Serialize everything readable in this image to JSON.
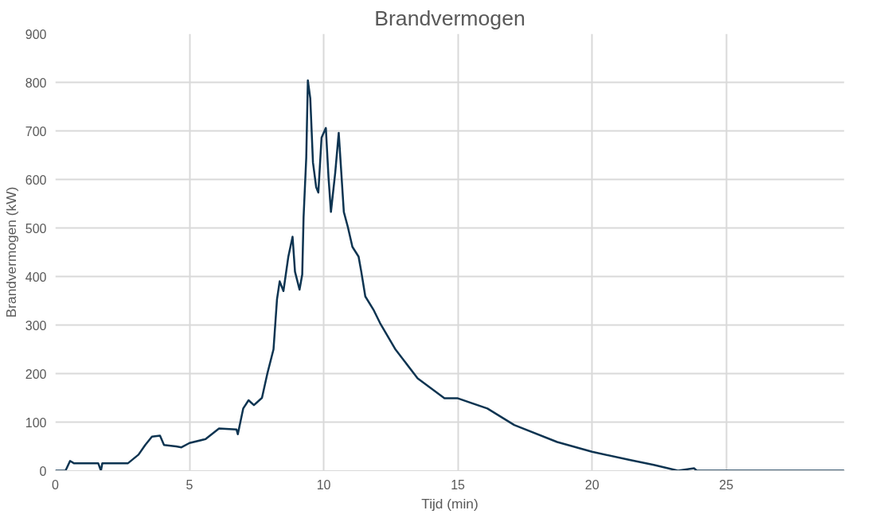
{
  "chart_data": {
    "type": "line",
    "title": "Brandvermogen",
    "xlabel": "Tijd (min)",
    "ylabel": "Brandvermogen (kW)",
    "xlim": [
      0,
      29.4
    ],
    "xticks": [
      0,
      5,
      10,
      15,
      20,
      25
    ],
    "ylim": [
      0,
      900
    ],
    "yticks": [
      0,
      100,
      200,
      300,
      400,
      500,
      600,
      700,
      800,
      900
    ],
    "grid": true,
    "marker": "none",
    "line_style": "solid",
    "series": [
      {
        "color": "#0d3451",
        "x": [
          0,
          0.38,
          0.55,
          0.7,
          1.6,
          1.7,
          1.75,
          2.7,
          3.1,
          3.35,
          3.6,
          3.9,
          4.05,
          4.5,
          4.7,
          5.0,
          5.6,
          6.1,
          6.75,
          6.8,
          7.0,
          7.2,
          7.4,
          7.7,
          7.9,
          8.13,
          8.26,
          8.36,
          8.5,
          8.68,
          8.84,
          8.93,
          9.1,
          9.2,
          9.25,
          9.35,
          9.41,
          9.5,
          9.6,
          9.72,
          9.8,
          9.92,
          10.08,
          10.18,
          10.27,
          10.43,
          10.56,
          10.62,
          10.75,
          10.9,
          11.07,
          11.3,
          11.4,
          11.55,
          11.87,
          12.1,
          12.66,
          13.5,
          14.5,
          15.0,
          16.1,
          17.1,
          18.7,
          20.0,
          21.4,
          22.3,
          23.2,
          23.8,
          23.9,
          29.4
        ],
        "values": [
          0,
          0,
          20,
          15,
          15,
          0,
          15,
          15,
          33,
          53,
          70,
          72,
          53,
          50,
          48,
          57,
          65,
          87,
          85,
          75,
          128,
          145,
          135,
          150,
          200,
          250,
          353,
          390,
          370,
          440,
          482,
          410,
          373,
          404,
          522,
          645,
          804,
          767,
          635,
          584,
          573,
          686,
          706,
          604,
          533,
          614,
          696,
          645,
          533,
          502,
          461,
          441,
          410,
          359,
          330,
          304,
          251,
          190,
          149,
          149,
          128,
          94,
          59,
          39,
          22,
          12,
          0,
          5,
          0,
          0
        ]
      }
    ]
  }
}
